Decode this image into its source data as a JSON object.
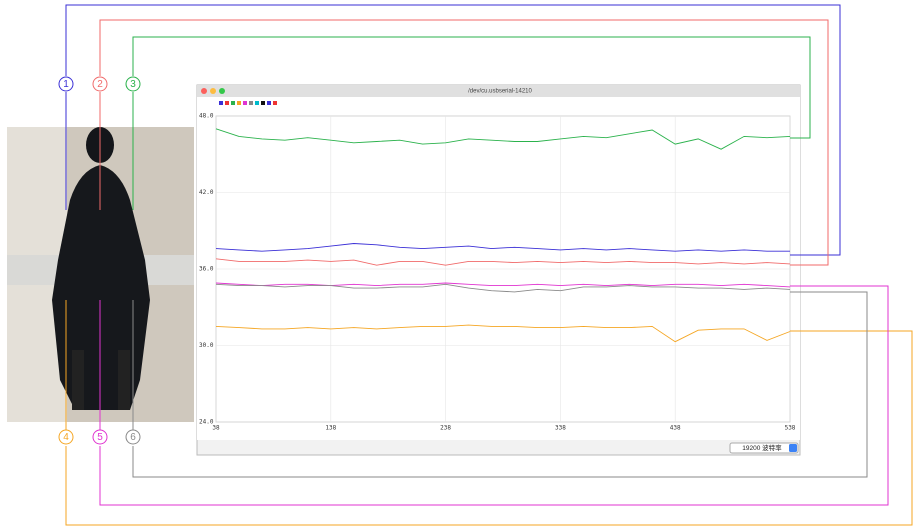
{
  "chart_data": {
    "type": "line",
    "window_title": "/dev/cu.usbserial-14210",
    "baud_select": "19200 波特率",
    "x": [
      38,
      58,
      78,
      98,
      118,
      138,
      158,
      178,
      198,
      218,
      238,
      258,
      278,
      298,
      318,
      338,
      358,
      378,
      398,
      418,
      438,
      458,
      478,
      498,
      518,
      538
    ],
    "xlim": [
      38,
      538
    ],
    "xticks": [
      38,
      138,
      238,
      338,
      438,
      538
    ],
    "ylim": [
      24,
      48
    ],
    "yticks": [
      {
        "value": 24,
        "label": "24.0"
      },
      {
        "value": 30,
        "label": "30.0"
      },
      {
        "value": 36,
        "label": "36.0"
      },
      {
        "value": 42,
        "label": "42.0"
      },
      {
        "value": 48,
        "label": "48.0"
      }
    ],
    "grid": true,
    "series": [
      {
        "name": "1",
        "color": "#3a2fd6",
        "values": [
          37.6,
          37.5,
          37.4,
          37.5,
          37.6,
          37.8,
          38.0,
          37.9,
          37.7,
          37.6,
          37.7,
          37.8,
          37.6,
          37.7,
          37.6,
          37.5,
          37.6,
          37.5,
          37.6,
          37.5,
          37.4,
          37.5,
          37.4,
          37.5,
          37.4,
          37.4
        ]
      },
      {
        "name": "2",
        "color": "#f06a6a",
        "values": [
          36.8,
          36.6,
          36.6,
          36.6,
          36.7,
          36.6,
          36.7,
          36.3,
          36.6,
          36.6,
          36.3,
          36.6,
          36.6,
          36.5,
          36.6,
          36.5,
          36.6,
          36.5,
          36.6,
          36.5,
          36.5,
          36.4,
          36.5,
          36.4,
          36.5,
          36.4
        ]
      },
      {
        "name": "3",
        "color": "#2bb24c",
        "values": [
          47.0,
          46.4,
          46.2,
          46.1,
          46.3,
          46.1,
          45.9,
          46.0,
          46.1,
          45.8,
          45.9,
          46.2,
          46.1,
          46.0,
          46.0,
          46.2,
          46.4,
          46.3,
          46.6,
          46.9,
          45.8,
          46.2,
          45.4,
          46.4,
          46.3,
          46.4
        ]
      },
      {
        "name": "4",
        "color": "#f5a623",
        "values": [
          31.5,
          31.4,
          31.3,
          31.3,
          31.4,
          31.3,
          31.4,
          31.3,
          31.4,
          31.5,
          31.5,
          31.6,
          31.5,
          31.5,
          31.4,
          31.4,
          31.5,
          31.4,
          31.4,
          31.5,
          30.3,
          31.2,
          31.3,
          31.3,
          30.4,
          31.1
        ]
      },
      {
        "name": "5",
        "color": "#e033d0",
        "values": [
          34.9,
          34.8,
          34.7,
          34.8,
          34.8,
          34.7,
          34.8,
          34.7,
          34.8,
          34.8,
          34.9,
          34.8,
          34.7,
          34.7,
          34.8,
          34.7,
          34.8,
          34.7,
          34.8,
          34.7,
          34.8,
          34.8,
          34.7,
          34.8,
          34.7,
          34.6
        ]
      },
      {
        "name": "6",
        "color": "#8a8a8a",
        "values": [
          34.8,
          34.7,
          34.7,
          34.6,
          34.7,
          34.7,
          34.5,
          34.5,
          34.6,
          34.6,
          34.8,
          34.5,
          34.3,
          34.2,
          34.4,
          34.3,
          34.6,
          34.6,
          34.7,
          34.6,
          34.6,
          34.5,
          34.5,
          34.4,
          34.5,
          34.4
        ]
      }
    ]
  }
}
